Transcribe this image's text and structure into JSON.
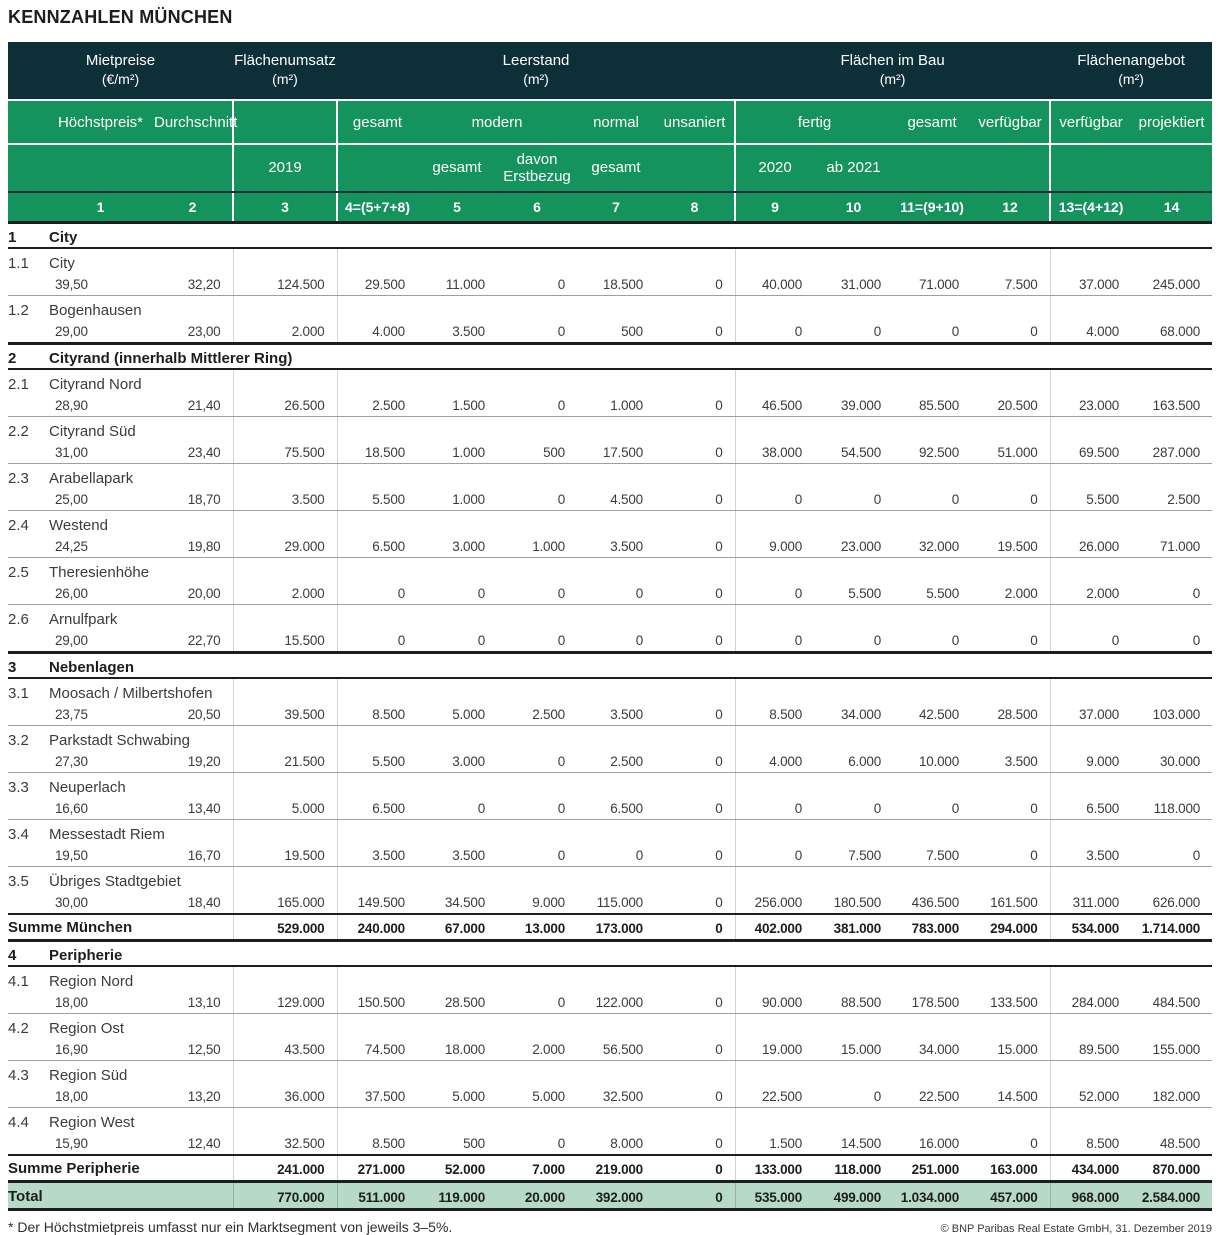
{
  "title": "KENNZAHLEN MÜNCHEN",
  "colors": {
    "header_dark": "#0d2f37",
    "header_green": "#15935c",
    "total_row_bg": "#b7d9c7"
  },
  "header": {
    "groups": [
      {
        "label": "Mietpreise",
        "unit": "(€/m²)"
      },
      {
        "label": "Flächenumsatz",
        "unit": "(m²)"
      },
      {
        "label": "Leerstand",
        "unit": "(m²)"
      },
      {
        "label": "Flächen im Bau",
        "unit": "(m²)"
      },
      {
        "label": "Flächenangebot",
        "unit": "(m²)"
      }
    ],
    "sub": [
      "Höchstpreis*",
      "Durchschnitt",
      "gesamt",
      "modern",
      "normal",
      "unsaniert",
      "fertig",
      "gesamt",
      "verfügbar",
      "verfügbar",
      "projektiert"
    ],
    "sub2": [
      "2019",
      "gesamt",
      "davon Erstbezug",
      "gesamt",
      "2020",
      "ab 2021"
    ],
    "colnums": [
      "1",
      "2",
      "3",
      "4=(5+7+8)",
      "5",
      "6",
      "7",
      "8",
      "9",
      "10",
      "11=(9+10)",
      "12",
      "13=(4+12)",
      "14"
    ]
  },
  "rows": [
    {
      "type": "group",
      "idx": "1",
      "name": "City"
    },
    {
      "type": "site",
      "idx": "1.1",
      "name": "City",
      "values": [
        "39,50",
        "32,20",
        "124.500",
        "29.500",
        "11.000",
        "0",
        "18.500",
        "0",
        "40.000",
        "31.000",
        "71.000",
        "7.500",
        "37.000",
        "245.000"
      ]
    },
    {
      "type": "site",
      "idx": "1.2",
      "name": "Bogenhausen",
      "values": [
        "29,00",
        "23,00",
        "2.000",
        "4.000",
        "3.500",
        "0",
        "500",
        "0",
        "0",
        "0",
        "0",
        "0",
        "4.000",
        "68.000"
      ]
    },
    {
      "type": "group",
      "idx": "2",
      "name": "Cityrand (innerhalb Mittlerer Ring)"
    },
    {
      "type": "site",
      "idx": "2.1",
      "name": "Cityrand Nord",
      "values": [
        "28,90",
        "21,40",
        "26.500",
        "2.500",
        "1.500",
        "0",
        "1.000",
        "0",
        "46.500",
        "39.000",
        "85.500",
        "20.500",
        "23.000",
        "163.500"
      ]
    },
    {
      "type": "site",
      "idx": "2.2",
      "name": "Cityrand Süd",
      "values": [
        "31,00",
        "23,40",
        "75.500",
        "18.500",
        "1.000",
        "500",
        "17.500",
        "0",
        "38.000",
        "54.500",
        "92.500",
        "51.000",
        "69.500",
        "287.000"
      ]
    },
    {
      "type": "site",
      "idx": "2.3",
      "name": "Arabellapark",
      "values": [
        "25,00",
        "18,70",
        "3.500",
        "5.500",
        "1.000",
        "0",
        "4.500",
        "0",
        "0",
        "0",
        "0",
        "0",
        "5.500",
        "2.500"
      ]
    },
    {
      "type": "site",
      "idx": "2.4",
      "name": "Westend",
      "values": [
        "24,25",
        "19,80",
        "29.000",
        "6.500",
        "3.000",
        "1.000",
        "3.500",
        "0",
        "9.000",
        "23.000",
        "32.000",
        "19.500",
        "26.000",
        "71.000"
      ]
    },
    {
      "type": "site",
      "idx": "2.5",
      "name": "Theresienhöhe",
      "values": [
        "26,00",
        "20,00",
        "2.000",
        "0",
        "0",
        "0",
        "0",
        "0",
        "0",
        "5.500",
        "5.500",
        "2.000",
        "2.000",
        "0"
      ]
    },
    {
      "type": "site",
      "idx": "2.6",
      "name": "Arnulfpark",
      "values": [
        "29,00",
        "22,70",
        "15.500",
        "0",
        "0",
        "0",
        "0",
        "0",
        "0",
        "0",
        "0",
        "0",
        "0",
        "0"
      ]
    },
    {
      "type": "group",
      "idx": "3",
      "name": "Nebenlagen"
    },
    {
      "type": "site",
      "idx": "3.1",
      "name": "Moosach / Milbertshofen",
      "values": [
        "23,75",
        "20,50",
        "39.500",
        "8.500",
        "5.000",
        "2.500",
        "3.500",
        "0",
        "8.500",
        "34.000",
        "42.500",
        "28.500",
        "37.000",
        "103.000"
      ]
    },
    {
      "type": "site",
      "idx": "3.2",
      "name": "Parkstadt Schwabing",
      "values": [
        "27,30",
        "19,20",
        "21.500",
        "5.500",
        "3.000",
        "0",
        "2.500",
        "0",
        "4.000",
        "6.000",
        "10.000",
        "3.500",
        "9.000",
        "30.000"
      ]
    },
    {
      "type": "site",
      "idx": "3.3",
      "name": "Neuperlach",
      "values": [
        "16,60",
        "13,40",
        "5.000",
        "6.500",
        "0",
        "0",
        "6.500",
        "0",
        "0",
        "0",
        "0",
        "0",
        "6.500",
        "118.000"
      ]
    },
    {
      "type": "site",
      "idx": "3.4",
      "name": "Messestadt Riem",
      "values": [
        "19,50",
        "16,70",
        "19.500",
        "3.500",
        "3.500",
        "0",
        "0",
        "0",
        "0",
        "7.500",
        "7.500",
        "0",
        "3.500",
        "0"
      ]
    },
    {
      "type": "site",
      "idx": "3.5",
      "name": "Übriges Stadtgebiet",
      "values": [
        "30,00",
        "18,40",
        "165.000",
        "149.500",
        "34.500",
        "9.000",
        "115.000",
        "0",
        "256.000",
        "180.500",
        "436.500",
        "161.500",
        "311.000",
        "626.000"
      ]
    },
    {
      "type": "sum",
      "name": "Summe München",
      "values": [
        "529.000",
        "240.000",
        "67.000",
        "13.000",
        "173.000",
        "0",
        "402.000",
        "381.000",
        "783.000",
        "294.000",
        "534.000",
        "1.714.000"
      ]
    },
    {
      "type": "group",
      "idx": "4",
      "name": "Peripherie"
    },
    {
      "type": "site",
      "idx": "4.1",
      "name": "Region Nord",
      "values": [
        "18,00",
        "13,10",
        "129.000",
        "150.500",
        "28.500",
        "0",
        "122.000",
        "0",
        "90.000",
        "88.500",
        "178.500",
        "133.500",
        "284.000",
        "484.500"
      ]
    },
    {
      "type": "site",
      "idx": "4.2",
      "name": "Region Ost",
      "values": [
        "16,90",
        "12,50",
        "43.500",
        "74.500",
        "18.000",
        "2.000",
        "56.500",
        "0",
        "19.000",
        "15.000",
        "34.000",
        "15.000",
        "89.500",
        "155.000"
      ]
    },
    {
      "type": "site",
      "idx": "4.3",
      "name": "Region Süd",
      "values": [
        "18,00",
        "13,20",
        "36.000",
        "37.500",
        "5.000",
        "5.000",
        "32.500",
        "0",
        "22.500",
        "0",
        "22.500",
        "14.500",
        "52.000",
        "182.000"
      ]
    },
    {
      "type": "site",
      "idx": "4.4",
      "name": "Region West",
      "values": [
        "15,90",
        "12,40",
        "32.500",
        "8.500",
        "500",
        "0",
        "8.000",
        "0",
        "1.500",
        "14.500",
        "16.000",
        "0",
        "8.500",
        "48.500"
      ]
    },
    {
      "type": "sum",
      "name": "Summe Peripherie",
      "values": [
        "241.000",
        "271.000",
        "52.000",
        "7.000",
        "219.000",
        "0",
        "133.000",
        "118.000",
        "251.000",
        "163.000",
        "434.000",
        "870.000"
      ]
    },
    {
      "type": "total",
      "name": "Total",
      "values": [
        "770.000",
        "511.000",
        "119.000",
        "20.000",
        "392.000",
        "0",
        "535.000",
        "499.000",
        "1.034.000",
        "457.000",
        "968.000",
        "2.584.000"
      ]
    }
  ],
  "footnote": "* Der Höchstmietpreis umfasst nur ein Marktsegment von jeweils 3–5%.",
  "copyright": "© BNP Paribas Real Estate GmbH, 31. Dezember 2019"
}
